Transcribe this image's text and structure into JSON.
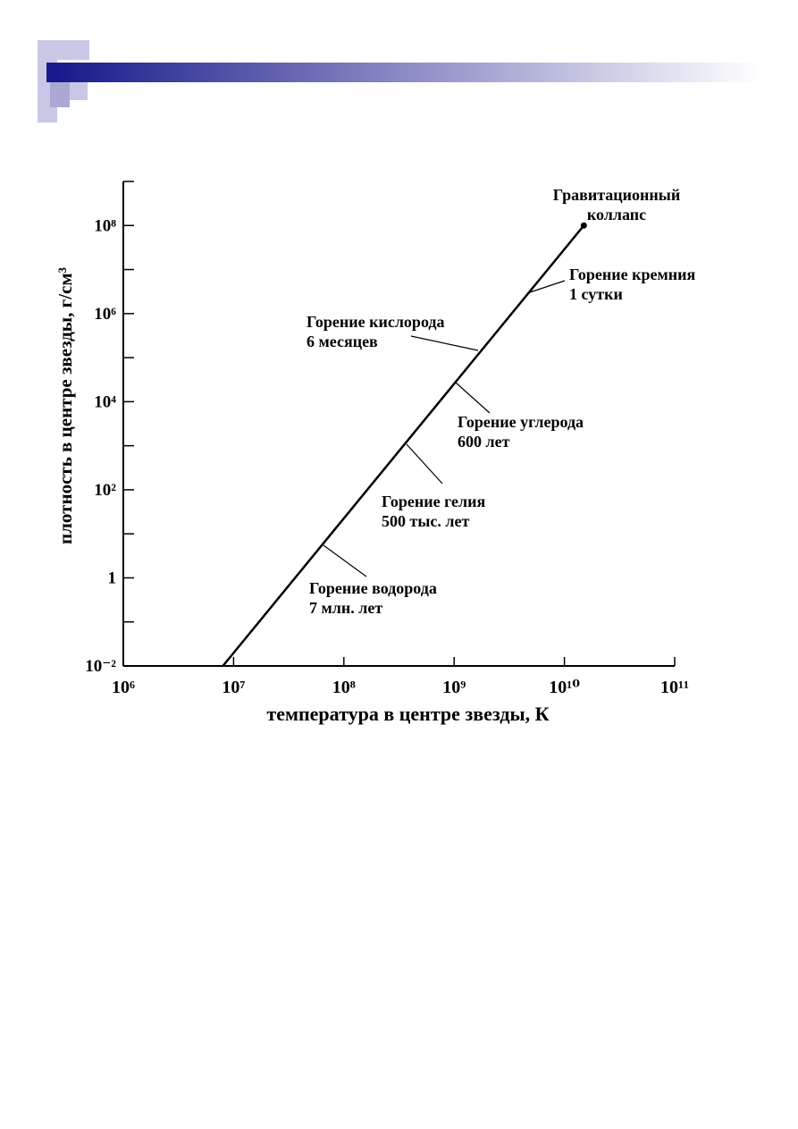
{
  "chart_data": {
    "type": "line",
    "xlog": true,
    "ylog": true,
    "xlabel": "температура в центре звезды, К",
    "ylabel": "плотность в центре звезды, г/см³",
    "xlim": [
      1000000,
      100000000000
    ],
    "ylim": [
      0.01,
      1000000000
    ],
    "xticks": [
      {
        "value": 1000000,
        "label": "10⁶"
      },
      {
        "value": 10000000,
        "label": "10⁷"
      },
      {
        "value": 100000000,
        "label": "10⁸"
      },
      {
        "value": 1000000000,
        "label": "10⁹"
      },
      {
        "value": 10000000000,
        "label": "10¹⁰"
      },
      {
        "value": 100000000000,
        "label": "10¹¹"
      }
    ],
    "yticks": [
      {
        "value": 0.01,
        "label": "10⁻²"
      },
      1,
      {
        "value": 100,
        "label": "10²"
      },
      {
        "value": 10000,
        "label": "10⁴"
      },
      {
        "value": 1000000,
        "label": "10⁶"
      },
      {
        "value": 100000000,
        "label": "10⁸"
      }
    ],
    "yminor_ticks": [
      0.1,
      10,
      1000,
      100000,
      10000000,
      1000000000
    ],
    "series": [
      {
        "color": "#000000",
        "x": [
          8000000,
          15000000000
        ],
        "values": [
          0.01,
          100000000
        ]
      }
    ],
    "annotations": [
      {
        "lines": [
          "Гравитационный",
          "коллапс"
        ]
      },
      {
        "lines": [
          "Горение кремния",
          "1 сутки"
        ]
      },
      {
        "lines": [
          "Горение кислорода",
          "6 месяцев"
        ]
      },
      {
        "lines": [
          "Горение углерода",
          "600 лет"
        ]
      },
      {
        "lines": [
          "Горение гелия",
          "500 тыс. лет"
        ]
      },
      {
        "lines": [
          "Горение водорода",
          "7 млн. лет"
        ]
      }
    ]
  }
}
